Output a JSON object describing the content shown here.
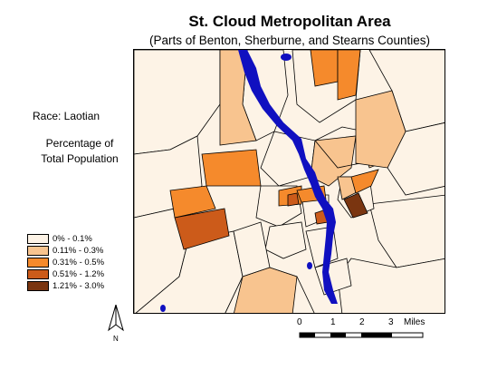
{
  "map": {
    "title": "St. Cloud Metropolitan Area",
    "subtitle": "(Parts of Benton, Sherburne, and Stearns Counties)",
    "race_label": "Race: Laotian",
    "measure_line1": "Percentage of",
    "measure_line2": "Total Population",
    "legend": [
      {
        "label": "0% - 0.1%",
        "color": "#fdf3e6"
      },
      {
        "label": "0.11% - 0.3%",
        "color": "#f8c48f"
      },
      {
        "label": "0.31% - 0.5%",
        "color": "#f58a2c"
      },
      {
        "label": "0.51% - 1.2%",
        "color": "#cc5b1a"
      },
      {
        "label": "1.21% - 3.0%",
        "color": "#7a3510"
      }
    ],
    "north_label": "N",
    "scale": {
      "ticks": [
        "0",
        "1",
        "2",
        "3"
      ],
      "unit": "Miles"
    },
    "water_color": "#1010c0"
  }
}
